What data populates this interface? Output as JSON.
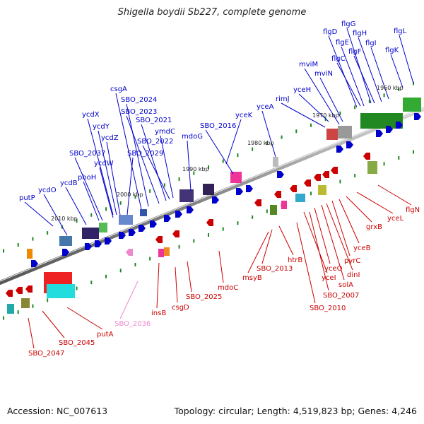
{
  "title": "Shigella boydii Sb227, complete genome",
  "footer": {
    "accession": "Accession: NC_007613",
    "stats": "Topology: circular; Length: 4,519,823 bp; Genes: 4,246"
  },
  "colors": {
    "forward": "#0000cc",
    "reverse": "#cc0000",
    "pseudo": "#ee88cc",
    "axis": "#888888",
    "tick": "#228822"
  },
  "scale_ticks": [
    "2010 kbp",
    "2000 kbp",
    "1990 kbp",
    "1980 kbp",
    "1970 kbp",
    "1960 kbp"
  ],
  "forward_genes": [
    "putP",
    "ycdO",
    "ycdB",
    "phoH",
    "SBO_2037",
    "ycdW",
    "SBO_2029",
    "ycdZ",
    "ycdY",
    "ycdX",
    "csgA",
    "SBO_2024",
    "SBO_2023",
    "SBO_2021",
    "ymdC",
    "SBO_2022",
    "mdoG",
    "SBO_2016",
    "yceK",
    "yceA",
    "rimJ",
    "yceH",
    "mviM",
    "mviN",
    "flgD",
    "flgC",
    "flgE",
    "flgG",
    "flgF",
    "flgH",
    "flgI",
    "flgK",
    "flgL"
  ],
  "reverse_genes": [
    "SBO_2047",
    "SBO_2045",
    "putA",
    "SBO_2036",
    "insB",
    "csgD",
    "SBO_2025",
    "mdoC",
    "msyB",
    "SBO_2013",
    "htrB",
    "SBO_2010",
    "yceI",
    "SBO_2007",
    "yceO",
    "solA",
    "dinI",
    "pyrC",
    "yceB",
    "grxB",
    "yceL",
    "flgN"
  ]
}
